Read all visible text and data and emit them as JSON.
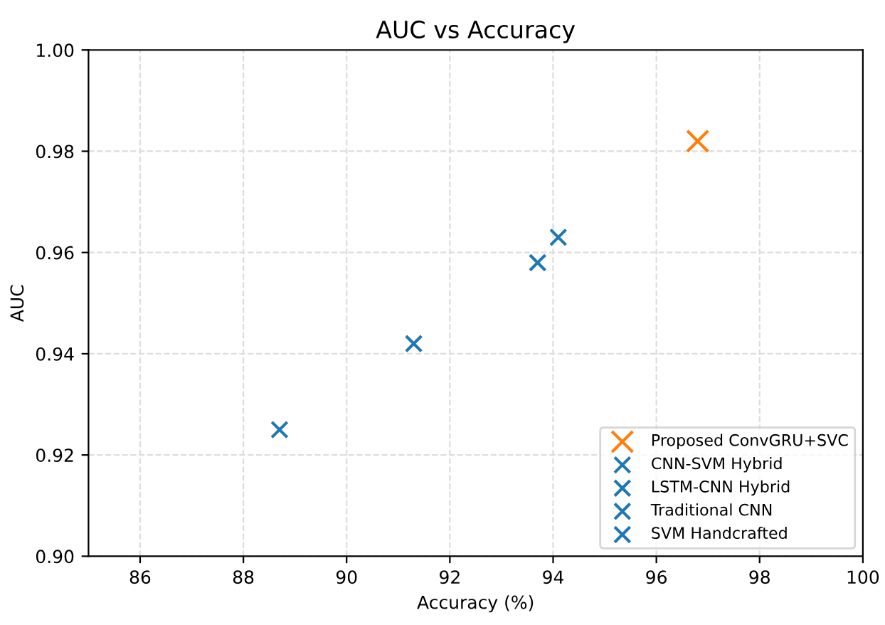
{
  "chart_data": {
    "type": "scatter",
    "title": "AUC vs Accuracy",
    "xlabel": "Accuracy (%)",
    "ylabel": "AUC",
    "series": [
      {
        "name": "Proposed ConvGRU+SVC",
        "color": "#ff7f0e",
        "x": [
          96.8
        ],
        "values": [
          0.982
        ]
      },
      {
        "name": "CNN-SVM Hybrid",
        "color": "#1f77b4",
        "x": [
          94.1
        ],
        "values": [
          0.963
        ]
      },
      {
        "name": "LSTM-CNN Hybrid",
        "color": "#1f77b4",
        "x": [
          93.7
        ],
        "values": [
          0.958
        ]
      },
      {
        "name": "Traditional CNN",
        "color": "#1f77b4",
        "x": [
          91.3
        ],
        "values": [
          0.942
        ]
      },
      {
        "name": "SVM Handcrafted",
        "color": "#1f77b4",
        "x": [
          88.7
        ],
        "values": [
          0.925
        ]
      }
    ],
    "xlim": [
      85,
      100
    ],
    "xticks": [
      86,
      88,
      90,
      92,
      94,
      96,
      98,
      100
    ],
    "ylim": [
      0.9,
      1.0
    ],
    "yticks": [
      {
        "value": 0.9,
        "label": "0.90"
      },
      {
        "value": 0.92,
        "label": "0.92"
      },
      {
        "value": 0.94,
        "label": "0.94"
      },
      {
        "value": 0.96,
        "label": "0.96"
      },
      {
        "value": 0.98,
        "label": "0.98"
      },
      {
        "value": 1.0,
        "label": "1.00"
      }
    ],
    "grid": true,
    "legend": "bottom right",
    "marker": "cross"
  }
}
